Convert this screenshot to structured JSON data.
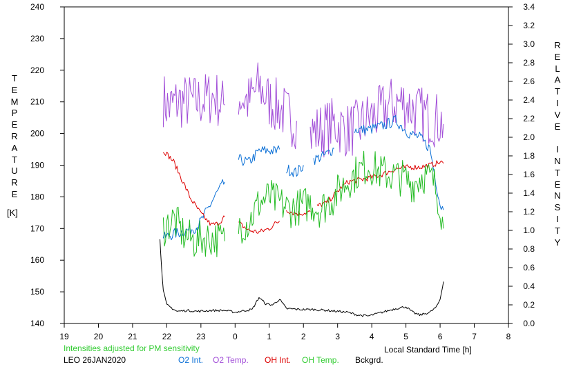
{
  "chart_data": {
    "type": "line",
    "station": "LEO 26JAN2020",
    "note": "Intensities adjusted for PM sensitivity",
    "xlabel": "Local Standard Time [h]",
    "ylabel_left": "TEMPERATURE",
    "ylabel_left_unit": "[K]",
    "ylabel_right": "RELATIVE INTENSITY",
    "x_ticks": [
      "19",
      "20",
      "21",
      "22",
      "23",
      "0",
      "1",
      "2",
      "3",
      "4",
      "5",
      "6",
      "7",
      "8"
    ],
    "x_range": [
      19,
      32
    ],
    "y_left_range": [
      140,
      240
    ],
    "y_left_ticks": [
      "140",
      "150",
      "160",
      "170",
      "180",
      "190",
      "200",
      "210",
      "220",
      "230",
      "240"
    ],
    "y_right_range": [
      0,
      3.4
    ],
    "y_right_ticks": [
      "0.0",
      "0.2",
      "0.4",
      "0.6",
      "0.8",
      "1.0",
      "1.2",
      "1.4",
      "1.6",
      "1.8",
      "2.0",
      "2.2",
      "2.4",
      "2.6",
      "2.8",
      "3.0",
      "3.2",
      "3.4"
    ],
    "legend": [
      {
        "name": "O2 Int.",
        "color": "#0a6fd6"
      },
      {
        "name": "O2 Temp.",
        "color": "#a24fd8"
      },
      {
        "name": "OH Int.",
        "color": "#dd0000"
      },
      {
        "name": "OH Temp.",
        "color": "#22bb22"
      },
      {
        "name": "Bckgrd.",
        "color": "#000000"
      }
    ],
    "series": [
      {
        "name": "O2 Temp.",
        "axis": "left",
        "color": "#a24fd8",
        "segments": [
          [
            [
              21.9,
              211
            ],
            [
              22.05,
              208
            ],
            [
              22.3,
              210
            ],
            [
              22.6,
              210
            ],
            [
              22.9,
              210
            ],
            [
              23.2,
              211
            ],
            [
              23.4,
              212
            ],
            [
              23.6,
              209
            ],
            [
              23.7,
              209
            ]
          ],
          [
            [
              24.1,
              212
            ],
            [
              24.4,
              210
            ],
            [
              24.7,
              215
            ],
            [
              25.0,
              210
            ],
            [
              25.3,
              208
            ],
            [
              25.6,
              205
            ],
            [
              25.8,
              204
            ]
          ],
          [
            [
              26.2,
              200
            ],
            [
              26.5,
              201
            ],
            [
              26.9,
              203
            ],
            [
              27.3,
              201
            ],
            [
              27.6,
              202
            ],
            [
              27.9,
              205
            ],
            [
              28.2,
              206
            ],
            [
              28.5,
              209
            ],
            [
              28.9,
              210
            ],
            [
              29.3,
              207
            ],
            [
              29.7,
              205
            ],
            [
              30.0,
              204
            ],
            [
              30.1,
              203
            ]
          ]
        ],
        "noise": 9
      },
      {
        "name": "O2 Int.",
        "axis": "right",
        "color": "#0a6fd6",
        "segments": [
          [
            [
              21.9,
              0.92
            ],
            [
              22.2,
              0.96
            ],
            [
              22.6,
              1.0
            ],
            [
              22.9,
              1.04
            ],
            [
              23.1,
              1.16
            ],
            [
              23.4,
              1.36
            ],
            [
              23.5,
              1.42
            ],
            [
              23.7,
              1.52
            ]
          ],
          [
            [
              24.1,
              1.76
            ],
            [
              24.4,
              1.73
            ],
            [
              24.7,
              1.85
            ],
            [
              25.0,
              1.86
            ],
            [
              25.2,
              1.85
            ],
            [
              25.3,
              1.87
            ]
          ],
          [
            [
              25.5,
              1.66
            ],
            [
              25.8,
              1.62
            ],
            [
              25.9,
              1.66
            ],
            [
              26.0,
              1.7
            ]
          ],
          [
            [
              26.3,
              1.76
            ],
            [
              26.6,
              1.8
            ],
            [
              26.9,
              1.88
            ]
          ],
          [
            [
              27.5,
              2.08
            ],
            [
              27.9,
              2.08
            ],
            [
              28.3,
              2.12
            ],
            [
              28.7,
              2.18
            ],
            [
              29.1,
              2.04
            ],
            [
              29.4,
              2.0
            ],
            [
              29.7,
              1.88
            ],
            [
              30.0,
              1.28
            ],
            [
              30.1,
              1.22
            ]
          ]
        ],
        "noise": 0.06
      },
      {
        "name": "OH Int.",
        "axis": "right",
        "color": "#dd0000",
        "segments": [
          [
            [
              21.9,
              1.86
            ],
            [
              22.2,
              1.74
            ],
            [
              22.5,
              1.5
            ],
            [
              22.7,
              1.34
            ],
            [
              23.0,
              1.18
            ],
            [
              23.3,
              1.06
            ],
            [
              23.5,
              1.07
            ],
            [
              23.7,
              1.15
            ]
          ],
          [
            [
              24.1,
              1.08
            ],
            [
              24.4,
              1.0
            ],
            [
              24.7,
              0.98
            ],
            [
              25.0,
              1.02
            ],
            [
              25.2,
              1.08
            ],
            [
              25.3,
              1.1
            ]
          ],
          [
            [
              25.5,
              1.22
            ],
            [
              25.7,
              1.19
            ],
            [
              25.9,
              1.18
            ],
            [
              26.2,
              1.2
            ]
          ],
          [
            [
              26.4,
              1.26
            ],
            [
              26.7,
              1.3
            ],
            [
              27.0,
              1.42
            ],
            [
              27.3,
              1.52
            ],
            [
              27.6,
              1.54
            ],
            [
              27.9,
              1.56
            ],
            [
              28.3,
              1.6
            ],
            [
              28.7,
              1.66
            ],
            [
              29.1,
              1.68
            ],
            [
              29.4,
              1.68
            ],
            [
              29.7,
              1.7
            ],
            [
              30.0,
              1.73
            ],
            [
              30.1,
              1.72
            ]
          ]
        ],
        "noise": 0.03
      },
      {
        "name": "OH Temp.",
        "axis": "left",
        "color": "#22bb22",
        "segments": [
          [
            [
              21.9,
              170
            ],
            [
              22.2,
              173
            ],
            [
              22.5,
              168
            ],
            [
              22.8,
              166
            ],
            [
              23.1,
              167
            ],
            [
              23.4,
              167
            ],
            [
              23.7,
              166
            ]
          ],
          [
            [
              24.1,
              171
            ],
            [
              24.4,
              172
            ],
            [
              24.7,
              178
            ],
            [
              25.0,
              180
            ],
            [
              25.3,
              178
            ],
            [
              25.6,
              176
            ],
            [
              25.9,
              177
            ],
            [
              26.2,
              178
            ],
            [
              26.5,
              176
            ],
            [
              26.9,
              180
            ],
            [
              27.2,
              184
            ],
            [
              27.6,
              188
            ],
            [
              27.9,
              190
            ],
            [
              28.2,
              188
            ],
            [
              28.5,
              187
            ],
            [
              28.9,
              186
            ],
            [
              29.2,
              184
            ],
            [
              29.5,
              187
            ],
            [
              29.8,
              185
            ],
            [
              30.0,
              178
            ],
            [
              30.1,
              170
            ]
          ]
        ],
        "noise": 6
      },
      {
        "name": "Bckgrd.",
        "axis": "right",
        "color": "#000000",
        "segments": [
          [
            [
              21.8,
              0.9
            ],
            [
              21.85,
              0.6
            ],
            [
              21.9,
              0.35
            ],
            [
              22.0,
              0.2
            ],
            [
              22.3,
              0.13
            ],
            [
              22.6,
              0.14
            ],
            [
              22.9,
              0.13
            ],
            [
              23.3,
              0.14
            ],
            [
              23.7,
              0.14
            ],
            [
              24.0,
              0.12
            ],
            [
              24.3,
              0.14
            ],
            [
              24.5,
              0.15
            ],
            [
              24.7,
              0.28
            ],
            [
              24.9,
              0.21
            ],
            [
              25.1,
              0.2
            ],
            [
              25.3,
              0.26
            ],
            [
              25.5,
              0.16
            ],
            [
              25.9,
              0.15
            ],
            [
              26.3,
              0.15
            ],
            [
              26.7,
              0.14
            ],
            [
              27.0,
              0.13
            ],
            [
              27.3,
              0.12
            ],
            [
              27.6,
              0.09
            ],
            [
              27.9,
              0.08
            ],
            [
              28.3,
              0.12
            ],
            [
              28.7,
              0.16
            ],
            [
              29.0,
              0.18
            ],
            [
              29.2,
              0.12
            ],
            [
              29.4,
              0.09
            ],
            [
              29.7,
              0.12
            ],
            [
              29.9,
              0.18
            ],
            [
              30.0,
              0.26
            ],
            [
              30.1,
              0.45
            ]
          ]
        ],
        "noise": 0.012
      }
    ]
  }
}
